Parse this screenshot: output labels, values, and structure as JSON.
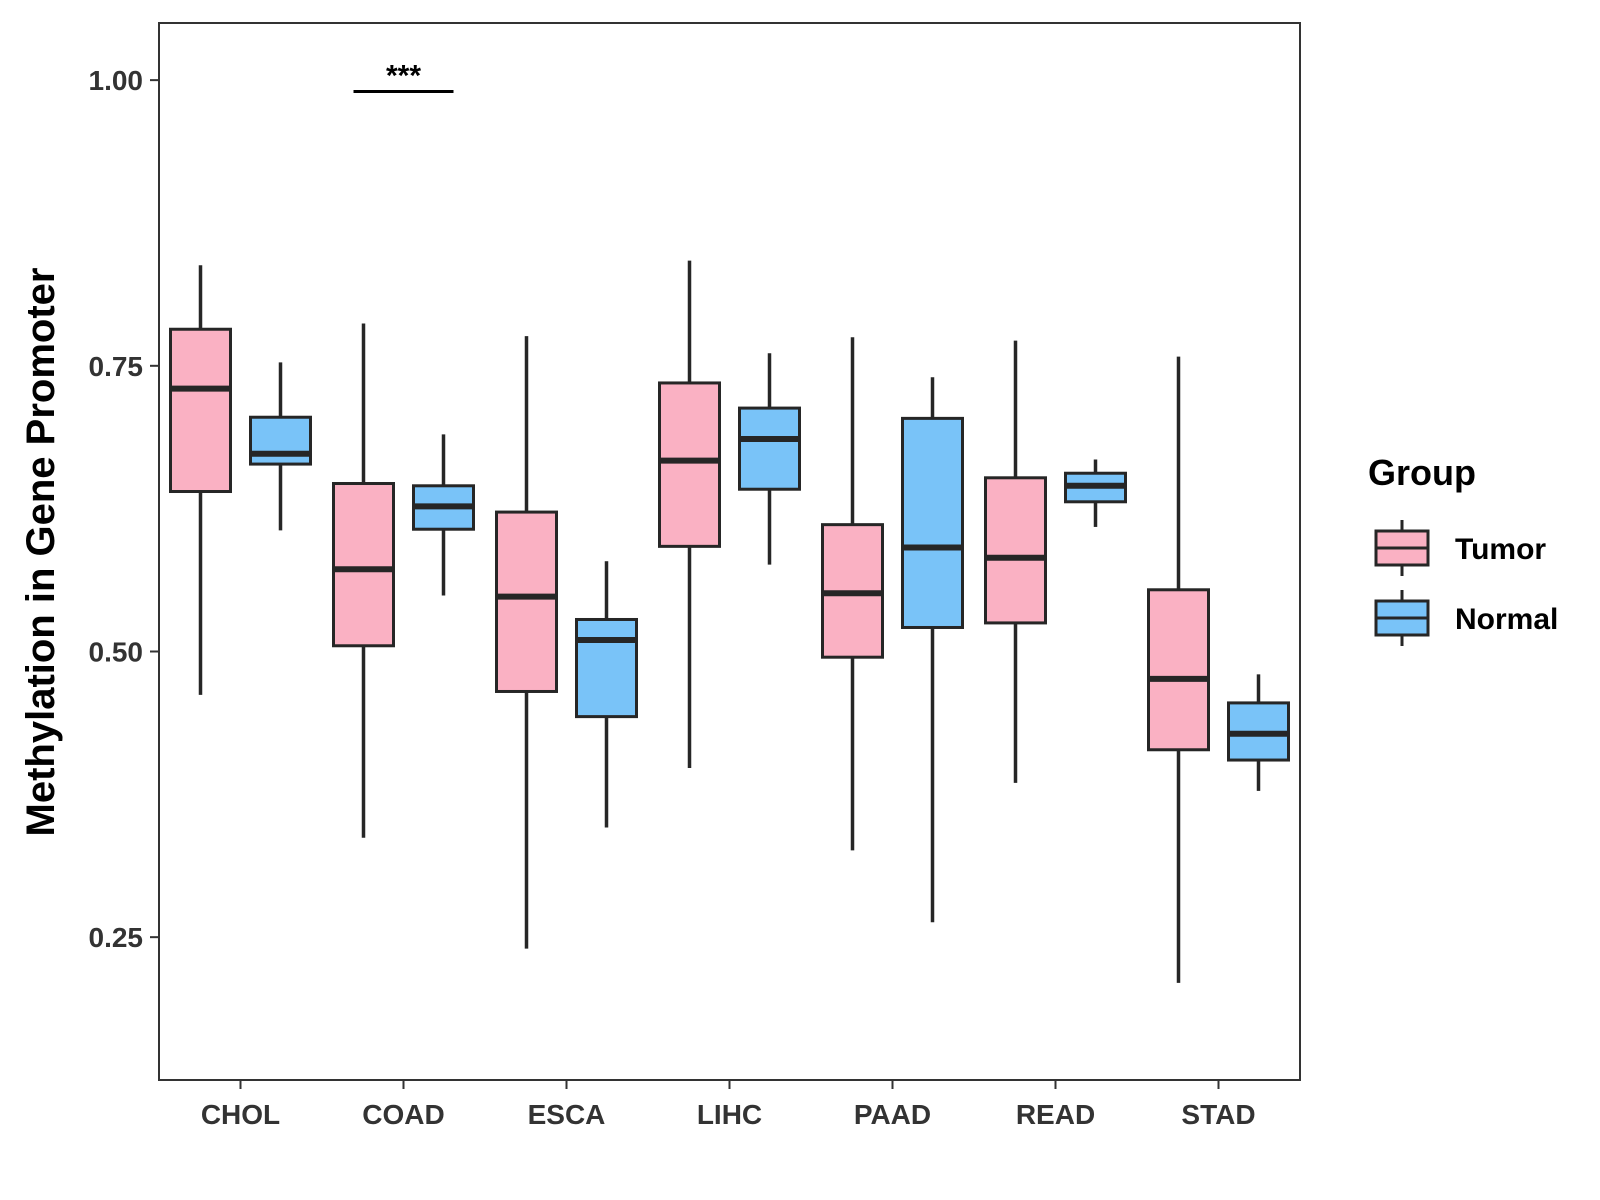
{
  "chart_data": {
    "type": "boxplot",
    "title": "",
    "xlabel": "",
    "ylabel": "Methylation in Gene Promoter",
    "ylim": [
      0.125,
      1.05
    ],
    "yticks": [
      0.25,
      0.5,
      0.75,
      1.0
    ],
    "ytick_labels": [
      "0.25",
      "0.50",
      "0.75",
      "1.00"
    ],
    "categories": [
      "CHOL",
      "COAD",
      "ESCA",
      "LIHC",
      "PAAD",
      "READ",
      "STAD"
    ],
    "legend": {
      "title": "Group",
      "position": "right",
      "entries": [
        {
          "name": "Tumor",
          "color": "#FAB1C3"
        },
        {
          "name": "Normal",
          "color": "#79C3F8"
        }
      ]
    },
    "series": [
      {
        "name": "Tumor",
        "color": "#FAB1C3",
        "boxes": [
          {
            "min": 0.462,
            "q1": 0.64,
            "median": 0.73,
            "q3": 0.782,
            "max": 0.838
          },
          {
            "min": 0.337,
            "q1": 0.505,
            "median": 0.572,
            "q3": 0.647,
            "max": 0.787
          },
          {
            "min": 0.24,
            "q1": 0.465,
            "median": 0.548,
            "q3": 0.622,
            "max": 0.776
          },
          {
            "min": 0.398,
            "q1": 0.592,
            "median": 0.667,
            "q3": 0.735,
            "max": 0.842
          },
          {
            "min": 0.326,
            "q1": 0.495,
            "median": 0.551,
            "q3": 0.611,
            "max": 0.775
          },
          {
            "min": 0.385,
            "q1": 0.525,
            "median": 0.582,
            "q3": 0.652,
            "max": 0.772
          },
          {
            "min": 0.21,
            "q1": 0.414,
            "median": 0.476,
            "q3": 0.554,
            "max": 0.758
          }
        ]
      },
      {
        "name": "Normal",
        "color": "#79C3F8",
        "boxes": [
          {
            "min": 0.606,
            "q1": 0.664,
            "median": 0.673,
            "q3": 0.705,
            "max": 0.753
          },
          {
            "min": 0.549,
            "q1": 0.607,
            "median": 0.627,
            "q3": 0.645,
            "max": 0.69
          },
          {
            "min": 0.346,
            "q1": 0.443,
            "median": 0.51,
            "q3": 0.528,
            "max": 0.579
          },
          {
            "min": 0.576,
            "q1": 0.642,
            "median": 0.686,
            "q3": 0.713,
            "max": 0.761
          },
          {
            "min": 0.263,
            "q1": 0.521,
            "median": 0.591,
            "q3": 0.704,
            "max": 0.74
          },
          {
            "min": 0.609,
            "q1": 0.631,
            "median": 0.645,
            "q3": 0.656,
            "max": 0.668
          },
          {
            "min": 0.378,
            "q1": 0.405,
            "median": 0.428,
            "q3": 0.455,
            "max": 0.48
          }
        ]
      }
    ],
    "annotations": [
      {
        "category": "COAD",
        "text": "***",
        "y": 0.99
      }
    ]
  }
}
